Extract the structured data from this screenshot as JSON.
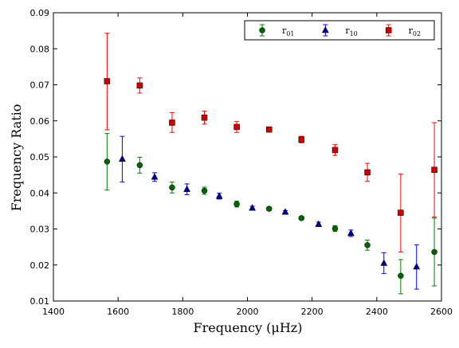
{
  "chart_data": {
    "type": "scatter",
    "title": "",
    "xlabel": "Frequency  (μHz)",
    "ylabel": "Frequency Ratio",
    "xlim": [
      1400,
      2600
    ],
    "ylim": [
      0.01,
      0.09
    ],
    "x_ticks": [
      1400,
      1600,
      1800,
      2000,
      2200,
      2400,
      2600
    ],
    "y_ticks": [
      0.01,
      0.02,
      0.03,
      0.04,
      0.05,
      0.06,
      0.07,
      0.08,
      0.09
    ],
    "x_tick_labels": [
      "1400",
      "1600",
      "1800",
      "2000",
      "2200",
      "2400",
      "2600"
    ],
    "y_tick_labels": [
      "0.01",
      "0.02",
      "0.03",
      "0.04",
      "0.05",
      "0.06",
      "0.07",
      "0.08",
      "0.09"
    ],
    "grid": false,
    "legend_position": "top-right",
    "series": [
      {
        "name": "r01",
        "label_main": "r",
        "label_sub": "01",
        "marker": "circle",
        "marker_color": "#006400",
        "errorbar_color": "#008000",
        "points": [
          {
            "x": 1566,
            "y": 0.0487,
            "lo": 0.0408,
            "hi": 0.0565
          },
          {
            "x": 1667,
            "y": 0.0477,
            "lo": 0.0455,
            "hi": 0.0499
          },
          {
            "x": 1767,
            "y": 0.0415,
            "lo": 0.04,
            "hi": 0.043
          },
          {
            "x": 1867,
            "y": 0.0406,
            "lo": 0.0396,
            "hi": 0.0416
          },
          {
            "x": 1967,
            "y": 0.0369,
            "lo": 0.0361,
            "hi": 0.0377
          },
          {
            "x": 2067,
            "y": 0.0356,
            "lo": 0.0351,
            "hi": 0.0361
          },
          {
            "x": 2167,
            "y": 0.033,
            "lo": 0.0325,
            "hi": 0.0335
          },
          {
            "x": 2271,
            "y": 0.0301,
            "lo": 0.0293,
            "hi": 0.0309
          },
          {
            "x": 2371,
            "y": 0.0255,
            "lo": 0.0241,
            "hi": 0.0269
          },
          {
            "x": 2474,
            "y": 0.017,
            "lo": 0.012,
            "hi": 0.0215
          },
          {
            "x": 2578,
            "y": 0.0236,
            "lo": 0.0142,
            "hi": 0.033
          }
        ]
      },
      {
        "name": "r10",
        "label_main": "r",
        "label_sub": "10",
        "marker": "triangle",
        "marker_color": "#00008B",
        "errorbar_color": "#0000FF",
        "points": [
          {
            "x": 1613,
            "y": 0.0494,
            "lo": 0.043,
            "hi": 0.0557
          },
          {
            "x": 1713,
            "y": 0.0444,
            "lo": 0.0432,
            "hi": 0.0456
          },
          {
            "x": 1813,
            "y": 0.041,
            "lo": 0.0395,
            "hi": 0.0425
          },
          {
            "x": 1913,
            "y": 0.0391,
            "lo": 0.0383,
            "hi": 0.0399
          },
          {
            "x": 2015,
            "y": 0.0358,
            "lo": 0.0353,
            "hi": 0.0363
          },
          {
            "x": 2117,
            "y": 0.0347,
            "lo": 0.0343,
            "hi": 0.0351
          },
          {
            "x": 2220,
            "y": 0.0313,
            "lo": 0.0307,
            "hi": 0.0319
          },
          {
            "x": 2320,
            "y": 0.0288,
            "lo": 0.0279,
            "hi": 0.0297
          },
          {
            "x": 2422,
            "y": 0.0205,
            "lo": 0.0176,
            "hi": 0.0234
          },
          {
            "x": 2523,
            "y": 0.0195,
            "lo": 0.0133,
            "hi": 0.0256
          }
        ]
      },
      {
        "name": "r02",
        "label_main": "r",
        "label_sub": "02",
        "marker": "square",
        "marker_color": "#CC0000",
        "errorbar_color": "#FF0000",
        "points": [
          {
            "x": 1566,
            "y": 0.071,
            "lo": 0.0575,
            "hi": 0.0843
          },
          {
            "x": 1667,
            "y": 0.0698,
            "lo": 0.0677,
            "hi": 0.0719
          },
          {
            "x": 1767,
            "y": 0.0595,
            "lo": 0.0568,
            "hi": 0.0623
          },
          {
            "x": 1867,
            "y": 0.0609,
            "lo": 0.0591,
            "hi": 0.0627
          },
          {
            "x": 1967,
            "y": 0.0583,
            "lo": 0.0568,
            "hi": 0.0598
          },
          {
            "x": 2067,
            "y": 0.0576,
            "lo": 0.057,
            "hi": 0.0582
          },
          {
            "x": 2167,
            "y": 0.0548,
            "lo": 0.0539,
            "hi": 0.0557
          },
          {
            "x": 2271,
            "y": 0.0519,
            "lo": 0.0504,
            "hi": 0.0534
          },
          {
            "x": 2371,
            "y": 0.0457,
            "lo": 0.0432,
            "hi": 0.0482
          },
          {
            "x": 2474,
            "y": 0.0345,
            "lo": 0.0236,
            "hi": 0.0452
          },
          {
            "x": 2578,
            "y": 0.0464,
            "lo": 0.0333,
            "hi": 0.0595
          }
        ]
      }
    ]
  }
}
